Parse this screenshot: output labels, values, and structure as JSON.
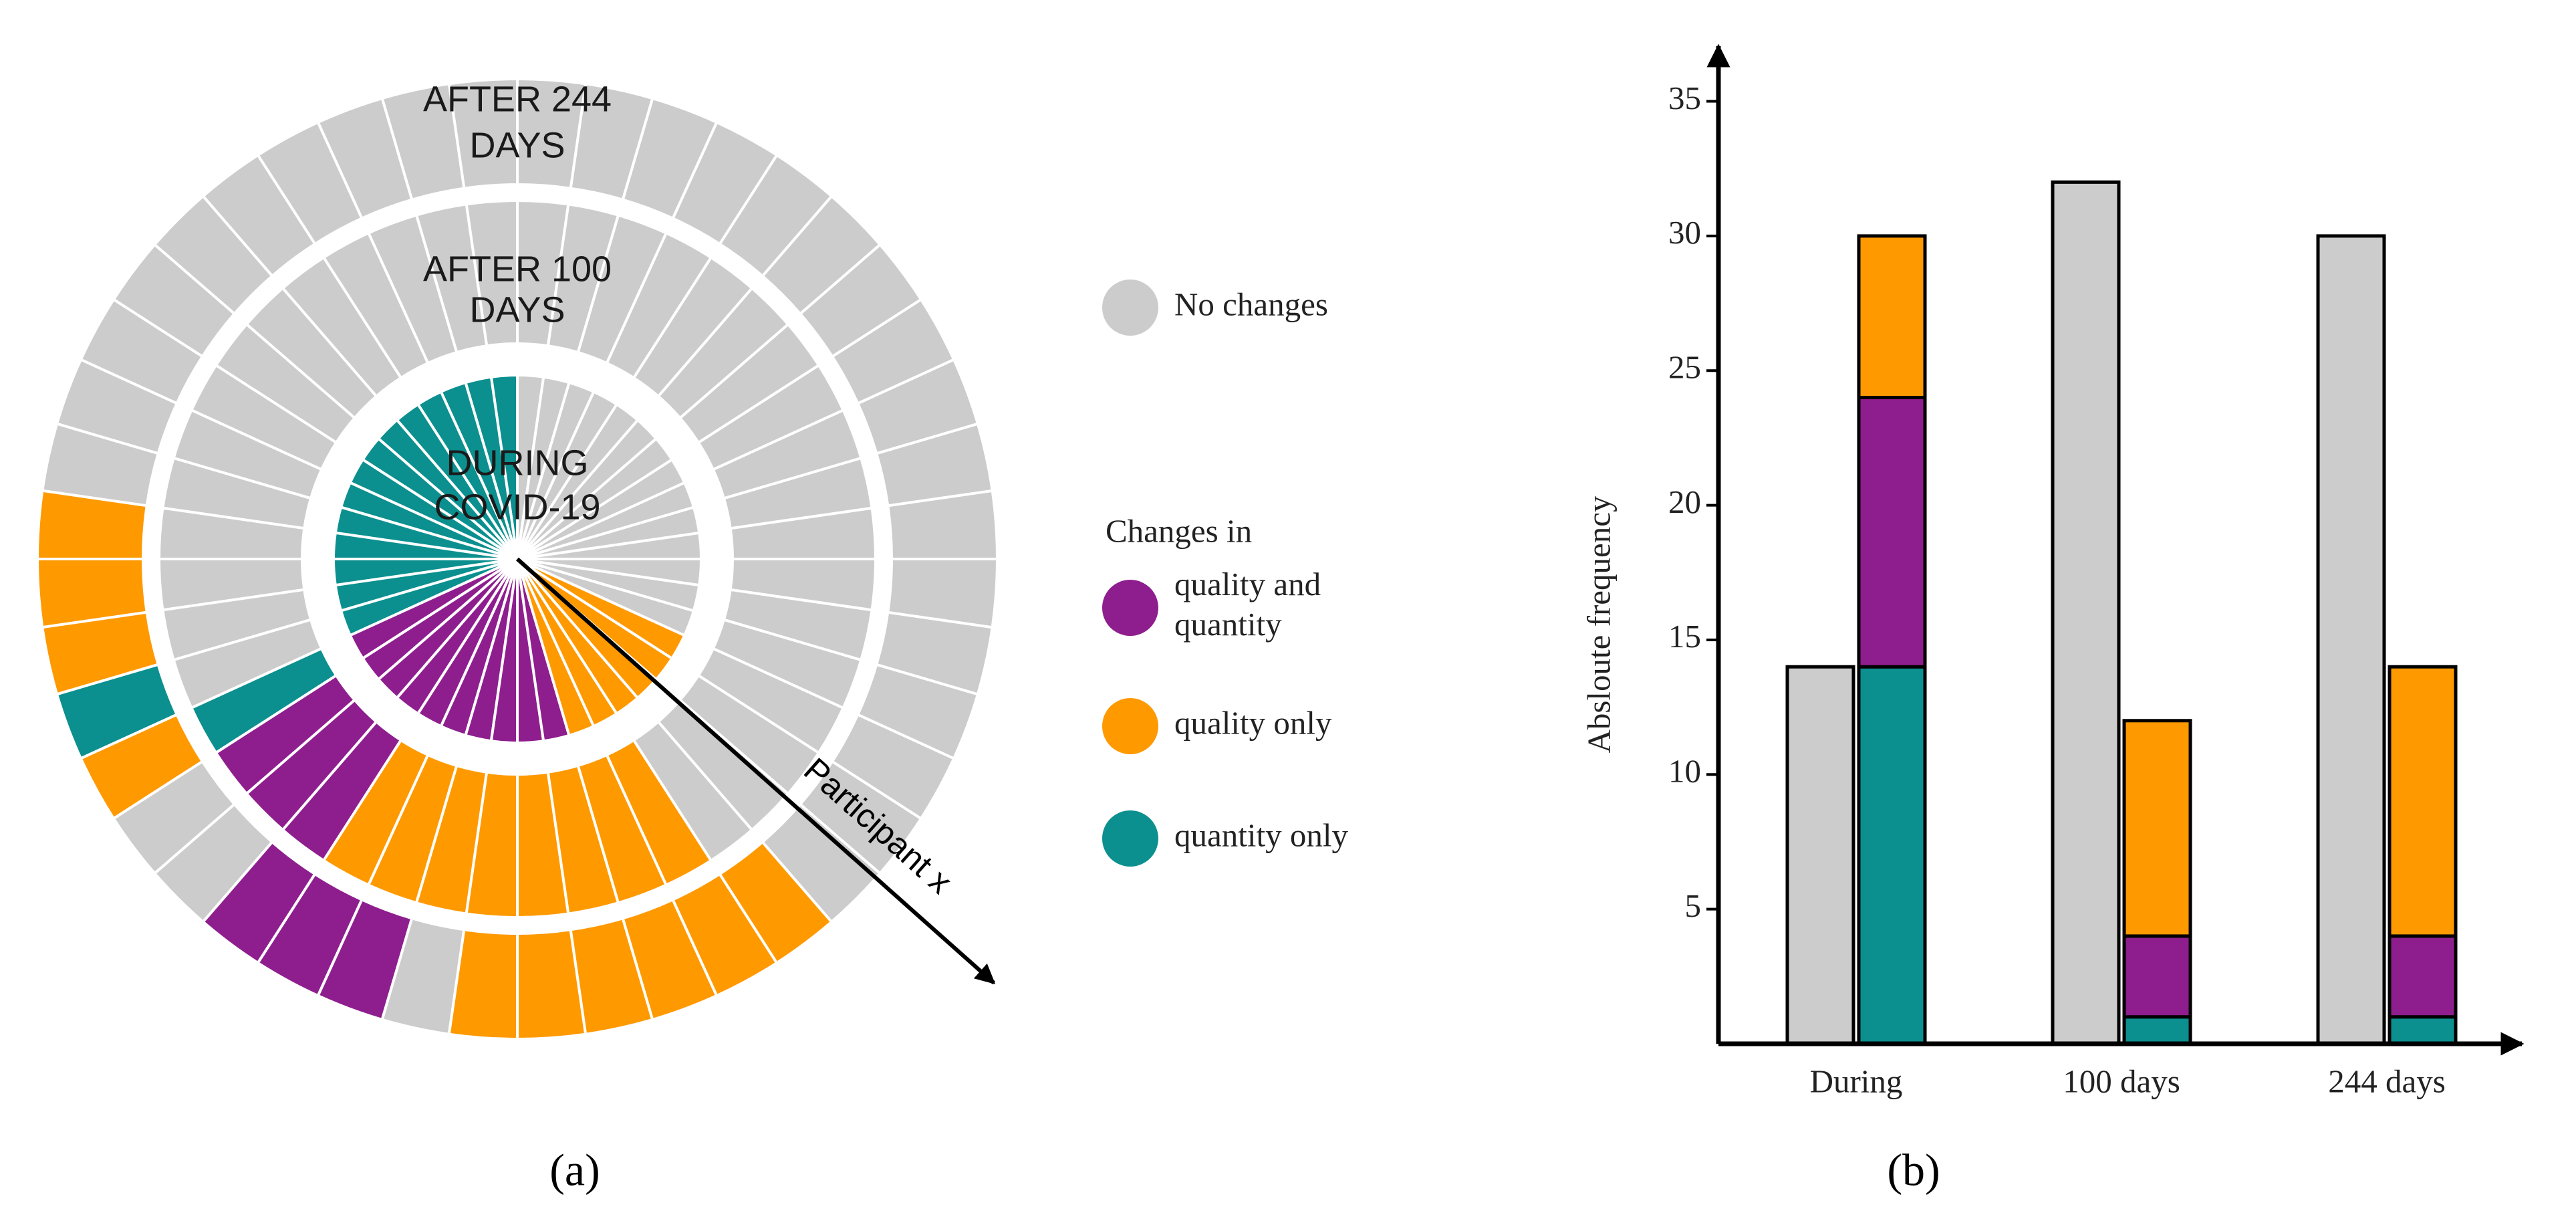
{
  "chart_data": [
    {
      "type": "radial",
      "rings": [
        {
          "label": [
            "DURING",
            "COVID-19"
          ],
          "runs": [
            {
              "color": "#0b8f8f",
              "count": 14
            },
            {
              "color": "#8e1e8e",
              "count": 10
            },
            {
              "color": "#ff9900",
              "count": 6
            },
            {
              "color": "#cccccc",
              "count": 14
            }
          ]
        },
        {
          "label": [
            "AFTER 100",
            "DAYS"
          ],
          "runs": [
            {
              "color": "#cccccc",
              "count": 14
            },
            {
              "color": "#0b8f8f",
              "count": 1
            },
            {
              "color": "#8e1e8e",
              "count": 3
            },
            {
              "color": "#ff9900",
              "count": 8
            },
            {
              "color": "#cccccc",
              "count": 18
            }
          ]
        },
        {
          "label": [
            "AFTER 244",
            "DAYS"
          ],
          "runs": [
            {
              "color": "#cccccc",
              "count": 10
            },
            {
              "color": "#ff9900",
              "count": 3
            },
            {
              "color": "#0b8f8f",
              "count": 1
            },
            {
              "color": "#ff9900",
              "count": 1
            },
            {
              "color": "#cccccc",
              "count": 2
            },
            {
              "color": "#8e1e8e",
              "count": 3
            },
            {
              "color": "#cccccc",
              "count": 1
            },
            {
              "color": "#ff9900",
              "count": 6
            },
            {
              "color": "#cccccc",
              "count": 17
            }
          ]
        }
      ],
      "legend": {
        "title": "Changes in",
        "items": [
          {
            "name": "No changes",
            "color": "#cccccc"
          },
          {
            "name": "quality and quantity",
            "color": "#8e1e8e"
          },
          {
            "name": "quality only",
            "color": "#ff9900"
          },
          {
            "name": "quantity only",
            "color": "#0b8f8f"
          }
        ]
      },
      "annotation": "Participant x",
      "panel_label": "(a)"
    },
    {
      "type": "bar",
      "categories": [
        "During",
        "100 days",
        "244 days"
      ],
      "series": [
        {
          "color": "#cccccc",
          "values": [
            14,
            32,
            30
          ]
        },
        {
          "color": "#0b8f8f",
          "values": [
            14,
            1,
            1
          ],
          "stack": true
        },
        {
          "color": "#8e1e8e",
          "values": [
            10,
            3,
            3
          ],
          "stack": true
        },
        {
          "color": "#ff9900",
          "values": [
            6,
            8,
            10
          ],
          "stack": true
        }
      ],
      "ylabel": "Absloute frequency",
      "ylim": [
        0,
        37
      ],
      "yticks": [
        5,
        10,
        15,
        20,
        25,
        30,
        35
      ],
      "panel_label": "(b)"
    }
  ]
}
